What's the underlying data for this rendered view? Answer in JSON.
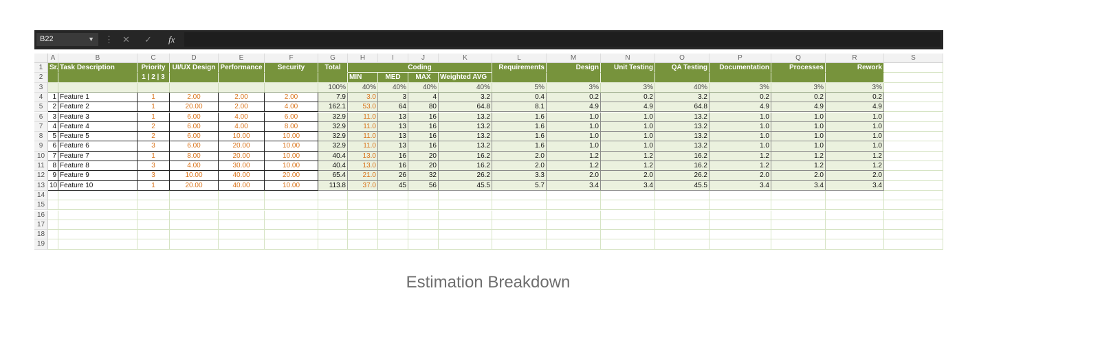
{
  "sheet": {
    "name_box": "B22",
    "formula_icon": "fx",
    "columns": [
      "A",
      "B",
      "C",
      "D",
      "E",
      "F",
      "G",
      "H",
      "I",
      "J",
      "K",
      "L",
      "M",
      "N",
      "O",
      "P",
      "Q",
      "R",
      "S"
    ],
    "row_numbers": [
      "1",
      "2",
      "3",
      "4",
      "5",
      "6",
      "7",
      "8",
      "9",
      "10",
      "11",
      "12",
      "13",
      "14",
      "15",
      "16",
      "17",
      "18",
      "19"
    ],
    "rows": [
      [
        "Sr.",
        "Task Description",
        "Priority",
        "UI/UX Design",
        "Performance",
        "Security",
        "Total",
        "Coding",
        null,
        null,
        null,
        "Requirements",
        "Design",
        "Unit Testing",
        "QA Testing",
        "Documentation",
        "Processes",
        "Rework"
      ],
      [
        null,
        null,
        "1 | 2 | 3",
        null,
        null,
        null,
        null,
        "MIN",
        "MED",
        "MAX",
        "Weighted AVG",
        null,
        null,
        null,
        null,
        null,
        null,
        null
      ],
      [
        null,
        null,
        null,
        null,
        null,
        null,
        "100%",
        "40%",
        "40%",
        "40%",
        "40%",
        "5%",
        "3%",
        "3%",
        "40%",
        "3%",
        "3%",
        "3%"
      ],
      [
        "1",
        "Feature 1",
        "1",
        "2.00",
        "2.00",
        "2.00",
        "7.9",
        "3.0",
        "3",
        "4",
        "3.2",
        "0.4",
        "0.2",
        "0.2",
        "3.2",
        "0.2",
        "0.2",
        "0.2"
      ],
      [
        "2",
        "Feature 2",
        "1",
        "20.00",
        "2.00",
        "4.00",
        "162.1",
        "53.0",
        "64",
        "80",
        "64.8",
        "8.1",
        "4.9",
        "4.9",
        "64.8",
        "4.9",
        "4.9",
        "4.9"
      ],
      [
        "3",
        "Feature 3",
        "1",
        "6.00",
        "4.00",
        "6.00",
        "32.9",
        "11.0",
        "13",
        "16",
        "13.2",
        "1.6",
        "1.0",
        "1.0",
        "13.2",
        "1.0",
        "1.0",
        "1.0"
      ],
      [
        "4",
        "Feature 4",
        "2",
        "6.00",
        "4.00",
        "8.00",
        "32.9",
        "11.0",
        "13",
        "16",
        "13.2",
        "1.6",
        "1.0",
        "1.0",
        "13.2",
        "1.0",
        "1.0",
        "1.0"
      ],
      [
        "5",
        "Feature 5",
        "2",
        "6.00",
        "10.00",
        "10.00",
        "32.9",
        "11.0",
        "13",
        "16",
        "13.2",
        "1.6",
        "1.0",
        "1.0",
        "13.2",
        "1.0",
        "1.0",
        "1.0"
      ],
      [
        "6",
        "Feature 6",
        "3",
        "6.00",
        "20.00",
        "10.00",
        "32.9",
        "11.0",
        "13",
        "16",
        "13.2",
        "1.6",
        "1.0",
        "1.0",
        "13.2",
        "1.0",
        "1.0",
        "1.0"
      ],
      [
        "7",
        "Feature 7",
        "1",
        "8.00",
        "20.00",
        "10.00",
        "40.4",
        "13.0",
        "16",
        "20",
        "16.2",
        "2.0",
        "1.2",
        "1.2",
        "16.2",
        "1.2",
        "1.2",
        "1.2"
      ],
      [
        "8",
        "Feature 8",
        "3",
        "4.00",
        "30.00",
        "10.00",
        "40.4",
        "13.0",
        "16",
        "20",
        "16.2",
        "2.0",
        "1.2",
        "1.2",
        "16.2",
        "1.2",
        "1.2",
        "1.2"
      ],
      [
        "9",
        "Feature 9",
        "3",
        "10.00",
        "40.00",
        "20.00",
        "65.4",
        "21.0",
        "26",
        "32",
        "26.2",
        "3.3",
        "2.0",
        "2.0",
        "26.2",
        "2.0",
        "2.0",
        "2.0"
      ],
      [
        "10",
        "Feature 10",
        "1",
        "20.00",
        "40.00",
        "10.00",
        "113.8",
        "37.0",
        "45",
        "56",
        "45.5",
        "5.7",
        "3.4",
        "3.4",
        "45.5",
        "3.4",
        "3.4",
        "3.4"
      ]
    ]
  },
  "caption": "Estimation Breakdown"
}
